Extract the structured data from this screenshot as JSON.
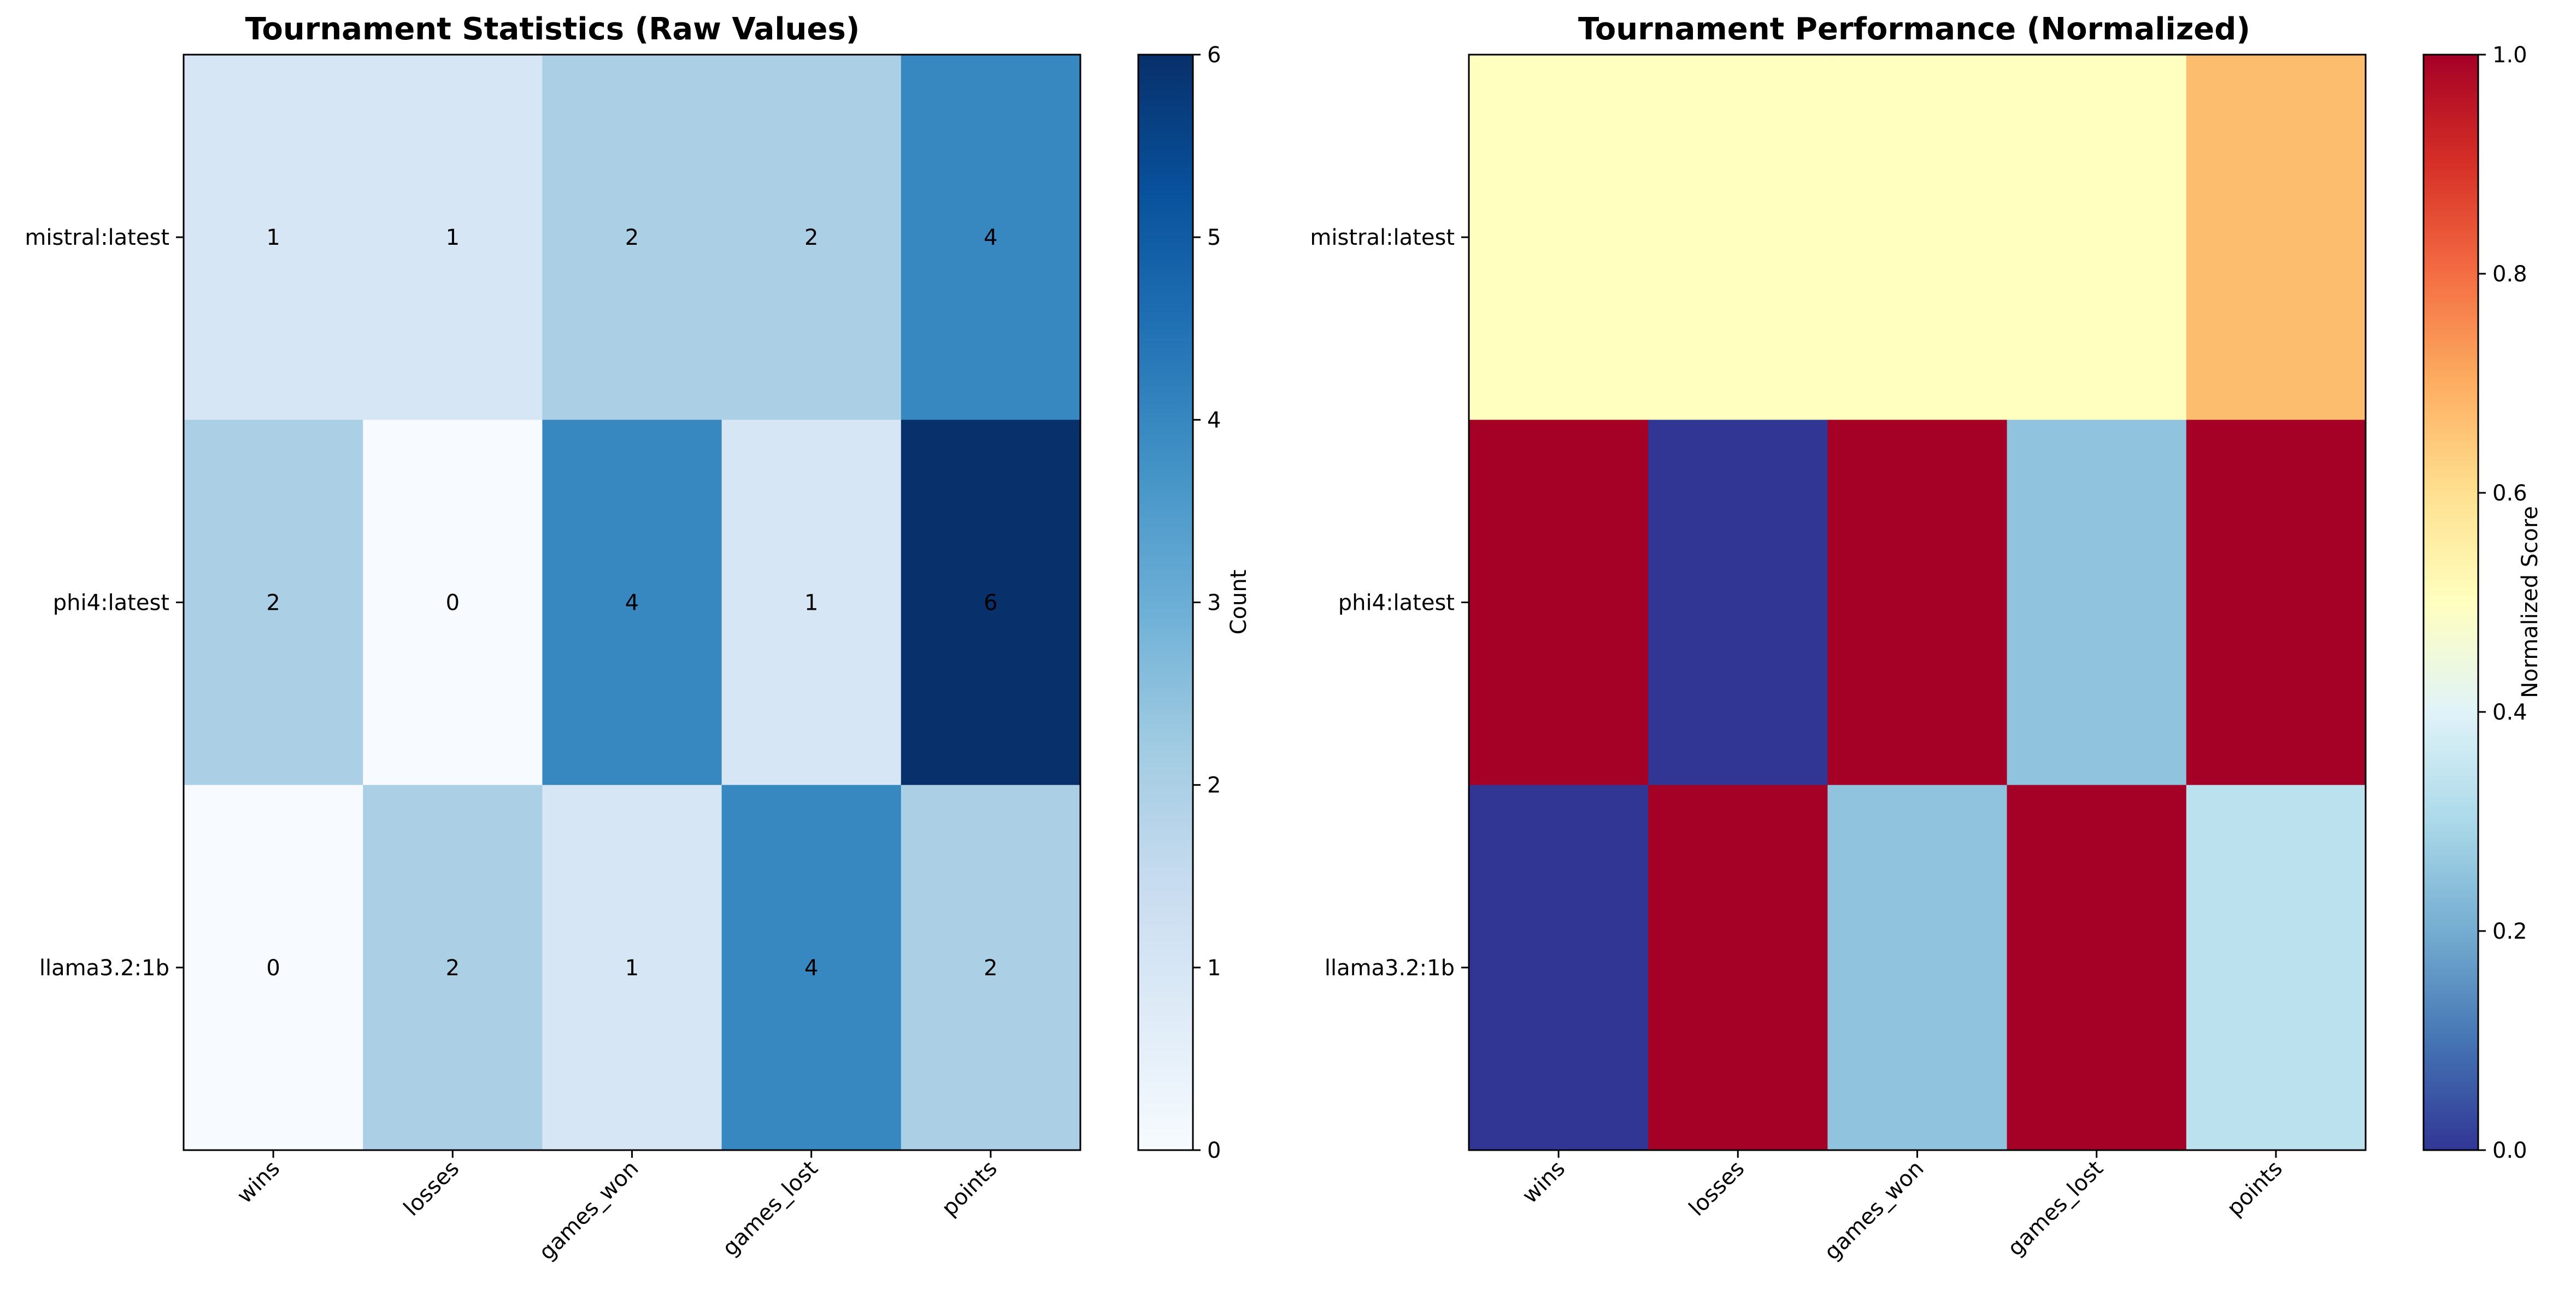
{
  "chart_data": [
    {
      "type": "heatmap",
      "title": "Tournament Statistics (Raw Values)",
      "columns": [
        "wins",
        "losses",
        "games_won",
        "games_lost",
        "points"
      ],
      "rows": [
        "mistral:latest",
        "phi4:latest",
        "llama3.2:1b"
      ],
      "values": [
        [
          1,
          1,
          2,
          2,
          4
        ],
        [
          2,
          0,
          4,
          1,
          6
        ],
        [
          0,
          2,
          1,
          4,
          2
        ]
      ],
      "value_labels": [
        [
          "1",
          "1",
          "2",
          "2",
          "4"
        ],
        [
          "2",
          "0",
          "4",
          "1",
          "6"
        ],
        [
          "0",
          "2",
          "1",
          "4",
          "2"
        ]
      ],
      "colormap": "Blues",
      "colorbar": {
        "label": "Count",
        "range": [
          0,
          6
        ],
        "ticks": [
          "0",
          "1",
          "2",
          "3",
          "4",
          "5",
          "6"
        ]
      },
      "annotated": true
    },
    {
      "type": "heatmap",
      "title": "Tournament Performance (Normalized)",
      "columns": [
        "wins",
        "losses",
        "games_won",
        "games_lost",
        "points"
      ],
      "rows": [
        "mistral:latest",
        "phi4:latest",
        "llama3.2:1b"
      ],
      "values": [
        [
          0.5,
          0.5,
          0.5,
          0.5,
          0.67
        ],
        [
          1.0,
          0.0,
          1.0,
          0.25,
          1.0
        ],
        [
          0.0,
          1.0,
          0.25,
          1.0,
          0.33
        ]
      ],
      "colormap": "RdYlBu_r",
      "colorbar": {
        "label": "Normalized Score",
        "range": [
          0,
          1
        ],
        "ticks": [
          "0.0",
          "0.2",
          "0.4",
          "0.6",
          "0.8",
          "1.0"
        ]
      },
      "annotated": false
    }
  ]
}
